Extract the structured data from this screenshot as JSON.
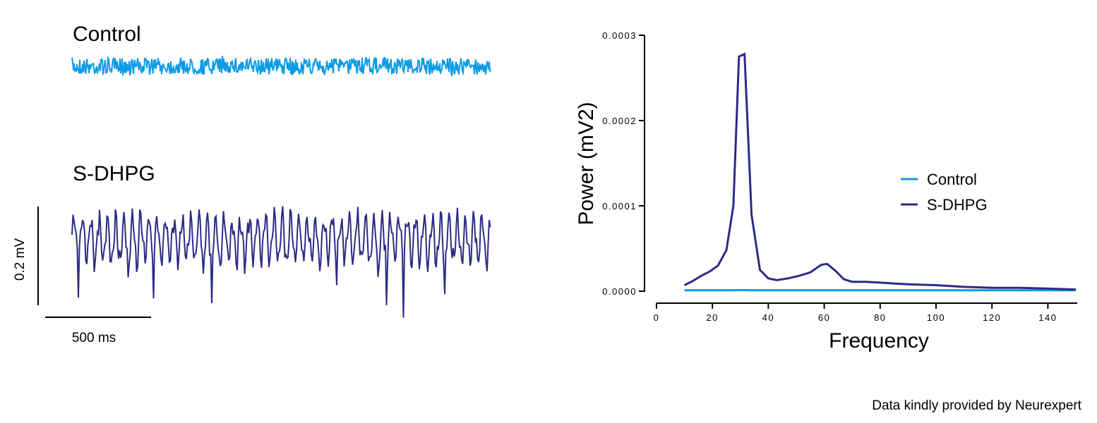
{
  "traces": {
    "labels": [
      "Control",
      "S-DHPG"
    ],
    "scale_y": "0.2 mV",
    "scale_x": "500 ms"
  },
  "chart_data": {
    "type": "line",
    "ylabel": "Power (mV2)",
    "xlabel": "Frequency",
    "x": [
      10,
      13,
      16,
      19,
      22,
      25,
      27.5,
      29.5,
      31.5,
      34,
      37,
      40,
      43,
      47,
      51,
      55,
      59,
      61,
      64,
      67,
      70,
      75,
      80,
      90,
      100,
      110,
      120,
      130,
      140,
      150
    ],
    "series": [
      {
        "name": "Control",
        "color": "#0c9be6",
        "values": [
          1e-06,
          1e-06,
          1e-06,
          1e-06,
          1e-06,
          1e-06,
          1e-06,
          1.2e-06,
          1.2e-06,
          1e-06,
          1e-06,
          1e-06,
          1e-06,
          1e-06,
          1e-06,
          1e-06,
          1e-06,
          1e-06,
          1e-06,
          1e-06,
          1e-06,
          1e-06,
          1e-06,
          1e-06,
          1e-06,
          1e-06,
          1e-06,
          1e-06,
          1e-06,
          1e-06
        ]
      },
      {
        "name": "S-DHPG",
        "color": "#2e2a86",
        "values": [
          7e-06,
          1.2e-05,
          1.8e-05,
          2.3e-05,
          3e-05,
          4.8e-05,
          0.0001,
          0.000275,
          0.000278,
          9e-05,
          2.5e-05,
          1.5e-05,
          1.3e-05,
          1.5e-05,
          1.8e-05,
          2.2e-05,
          3.1e-05,
          3.2e-05,
          2.4e-05,
          1.4e-05,
          1.1e-05,
          1.1e-05,
          1e-05,
          8e-06,
          7e-06,
          5e-06,
          4e-06,
          4e-06,
          3e-06,
          2e-06
        ]
      }
    ],
    "xlim": [
      0,
      150
    ],
    "xticks": [
      0,
      20,
      40,
      60,
      80,
      100,
      120,
      140
    ],
    "ylim": [
      0,
      0.0003
    ],
    "yticks": [
      {
        "value": 0,
        "label": "0.0000"
      },
      {
        "value": 0.0001,
        "label": "0.0001"
      },
      {
        "value": 0.0002,
        "label": "0.0002"
      },
      {
        "value": 0.0003,
        "label": "0.0003"
      }
    ],
    "legend": "right"
  },
  "footer": "Data kindly provided by Neurexpert"
}
